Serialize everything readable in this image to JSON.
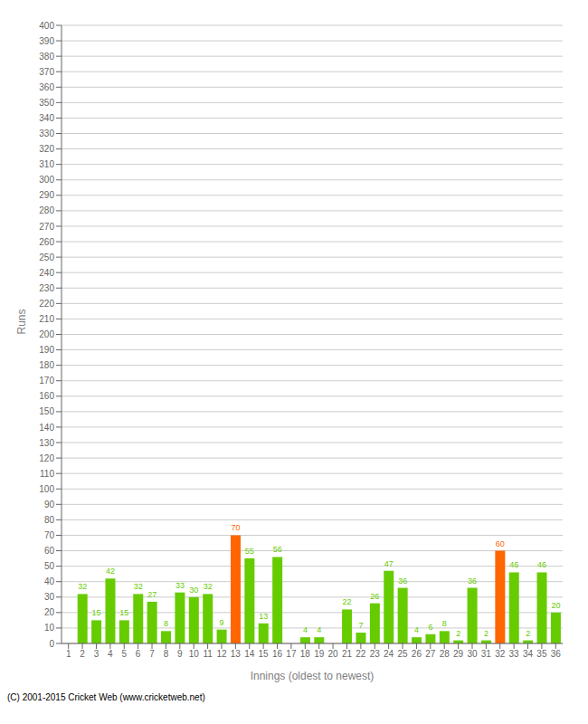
{
  "chart_data": {
    "type": "bar",
    "xlabel": "Innings (oldest to newest)",
    "ylabel": "Runs",
    "categories": [
      "1",
      "2",
      "3",
      "4",
      "5",
      "6",
      "7",
      "8",
      "9",
      "10",
      "11",
      "12",
      "13",
      "14",
      "15",
      "16",
      "17",
      "18",
      "19",
      "20",
      "21",
      "22",
      "23",
      "24",
      "25",
      "26",
      "27",
      "28",
      "29",
      "30",
      "31",
      "32",
      "33",
      "34",
      "35",
      "36"
    ],
    "values": [
      0,
      32,
      15,
      42,
      15,
      32,
      27,
      8,
      33,
      30,
      32,
      9,
      70,
      55,
      13,
      56,
      0,
      4,
      4,
      0,
      22,
      7,
      26,
      47,
      36,
      4,
      6,
      8,
      2,
      36,
      2,
      60,
      46,
      2,
      46,
      20
    ],
    "colors": [
      "#66cc00",
      "#66cc00",
      "#66cc00",
      "#66cc00",
      "#66cc00",
      "#66cc00",
      "#66cc00",
      "#66cc00",
      "#66cc00",
      "#66cc00",
      "#66cc00",
      "#66cc00",
      "#ff6600",
      "#66cc00",
      "#66cc00",
      "#66cc00",
      "#66cc00",
      "#66cc00",
      "#66cc00",
      "#66cc00",
      "#66cc00",
      "#66cc00",
      "#66cc00",
      "#66cc00",
      "#66cc00",
      "#66cc00",
      "#66cc00",
      "#66cc00",
      "#66cc00",
      "#66cc00",
      "#66cc00",
      "#ff6600",
      "#66cc00",
      "#66cc00",
      "#66cc00",
      "#66cc00"
    ],
    "ylim": [
      0,
      400
    ],
    "yticks": [
      0,
      10,
      20,
      30,
      40,
      50,
      60,
      70,
      80,
      90,
      100,
      110,
      120,
      130,
      140,
      150,
      160,
      170,
      180,
      190,
      200,
      210,
      220,
      230,
      240,
      250,
      260,
      270,
      280,
      290,
      300,
      310,
      320,
      330,
      340,
      350,
      360,
      370,
      380,
      390,
      400
    ],
    "grid": true,
    "data_labels": true,
    "annotations": [
      "(C) 2001-2015 Cricket Web (www.cricketweb.net)"
    ]
  }
}
